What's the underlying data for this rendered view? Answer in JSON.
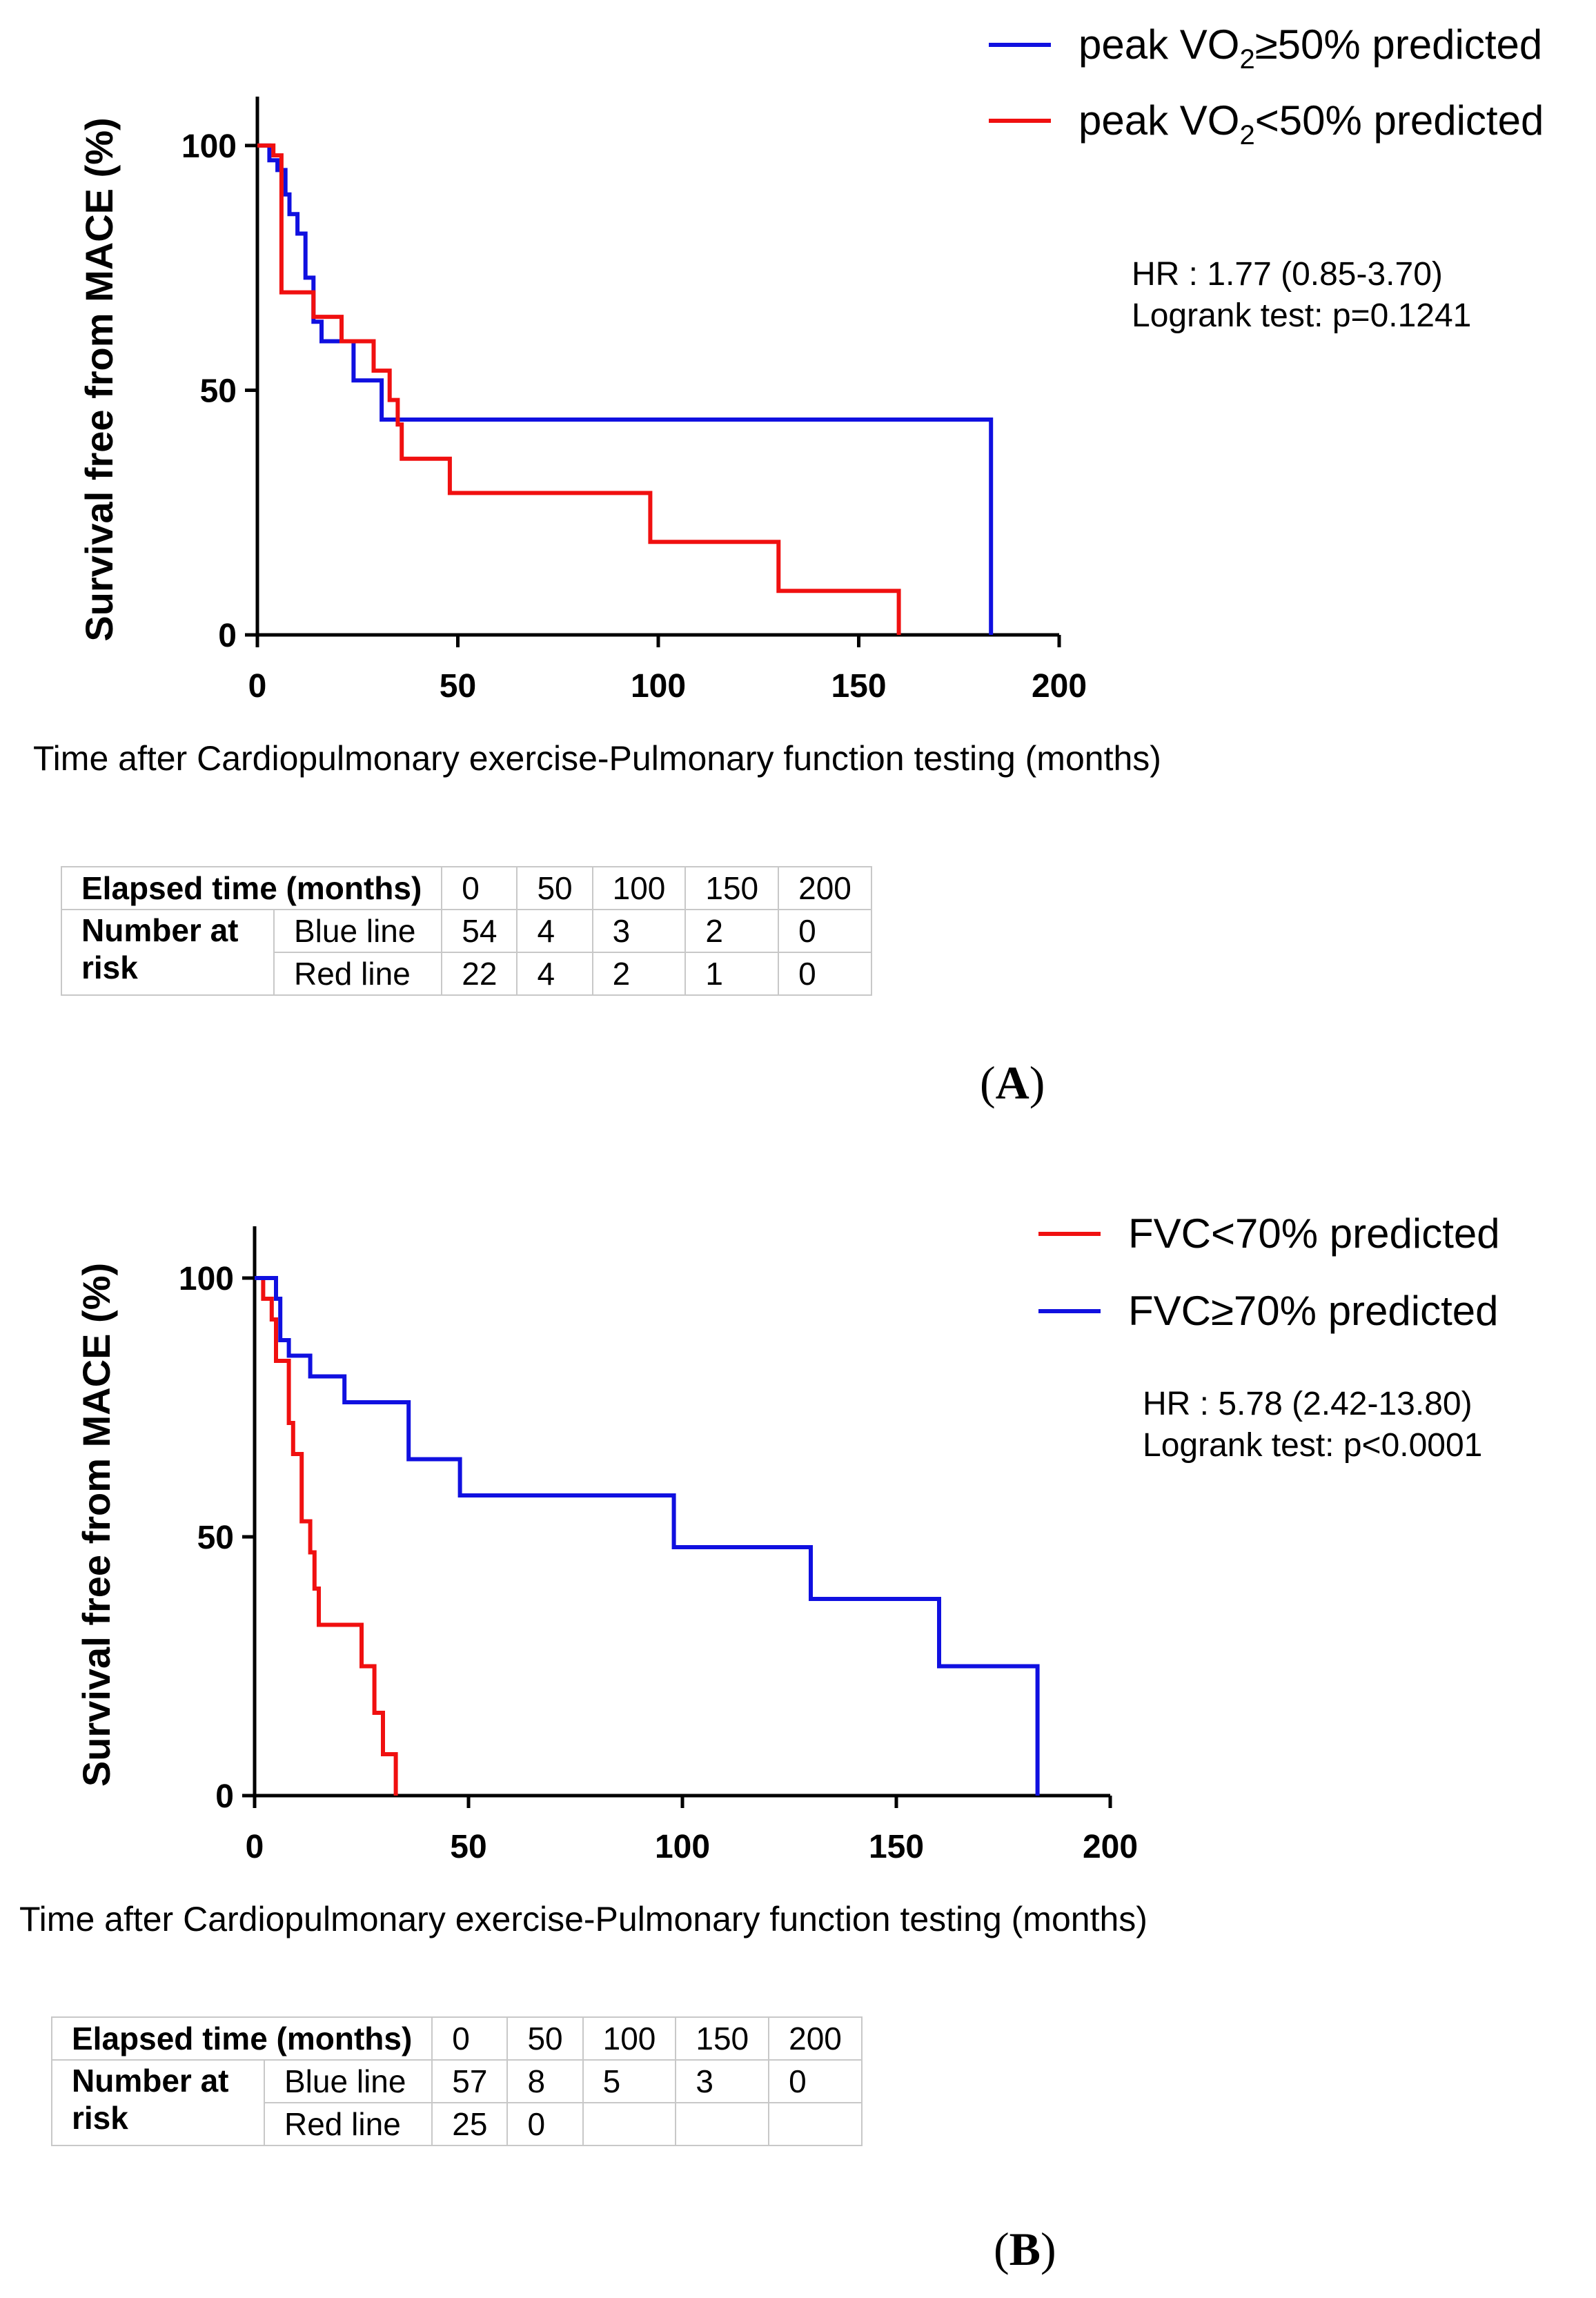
{
  "chart_data": [
    {
      "type": "line",
      "subtype": "kaplan-meier-step",
      "panel": "A",
      "ylabel": "Survival free from MACE (%)",
      "xlabel": "Time after Cardiopulmonary exercise-Pulmonary function testing (months)",
      "xlim": [
        0,
        200
      ],
      "ylim": [
        0,
        110
      ],
      "xticks": [
        0,
        50,
        100,
        150,
        200
      ],
      "yticks": [
        0,
        50,
        100
      ],
      "legend": [
        {
          "prefix": "peak VO",
          "sub": "2",
          "suffix": "≥50% predicted",
          "color": "#1010e0"
        },
        {
          "prefix": "peak VO",
          "sub": "2",
          "suffix": "<50% predicted",
          "color": "#f01010"
        }
      ],
      "stats": [
        "HR : 1.77 (0.85-3.70)",
        "Logrank test: p=0.1241"
      ],
      "series": [
        {
          "name": "peak VO2≥50% predicted",
          "color": "#1010e0",
          "x": [
            0,
            3,
            3,
            5,
            5,
            7,
            7,
            8,
            8,
            10,
            10,
            12,
            12,
            14,
            14,
            16,
            16,
            24,
            24,
            31,
            31,
            33,
            33,
            183,
            183
          ],
          "y": [
            100,
            100,
            97,
            97,
            95,
            95,
            90,
            90,
            86,
            86,
            82,
            82,
            73,
            73,
            64,
            64,
            60,
            60,
            52,
            52,
            44,
            44,
            44,
            44,
            0
          ]
        },
        {
          "name": "peak VO2<50% predicted",
          "color": "#f01010",
          "x": [
            0,
            4,
            4,
            6,
            6,
            14,
            14,
            21,
            21,
            29,
            29,
            33,
            33,
            35,
            35,
            36,
            36,
            48,
            48,
            98,
            98,
            130,
            130,
            160,
            160
          ],
          "y": [
            100,
            100,
            98,
            98,
            70,
            70,
            65,
            65,
            60,
            60,
            54,
            54,
            48,
            48,
            43,
            43,
            36,
            36,
            29,
            29,
            19,
            19,
            9,
            9,
            0
          ]
        }
      ],
      "risk_table": {
        "header_label": "Elapsed time (months)",
        "times": [
          "0",
          "50",
          "100",
          "150",
          "200"
        ],
        "row_group_label": "Number at risk",
        "rows": [
          {
            "label": "Blue line",
            "values": [
              "54",
              "4",
              "3",
              "2",
              "0"
            ]
          },
          {
            "label": "Red line",
            "values": [
              "22",
              "4",
              "2",
              "1",
              "0"
            ]
          }
        ]
      },
      "panel_label": "A"
    },
    {
      "type": "line",
      "subtype": "kaplan-meier-step",
      "panel": "B",
      "ylabel": "Survival free from MACE (%)",
      "xlabel": "Time after Cardiopulmonary exercise-Pulmonary function testing (months)",
      "xlim": [
        0,
        200
      ],
      "ylim": [
        0,
        110
      ],
      "xticks": [
        0,
        50,
        100,
        150,
        200
      ],
      "yticks": [
        0,
        50,
        100
      ],
      "legend": [
        {
          "prefix": "FVC<70% predicted",
          "sub": "",
          "suffix": "",
          "color": "#f01010"
        },
        {
          "prefix": "FVC≥70% predicted",
          "sub": "",
          "suffix": "",
          "color": "#1010e0"
        }
      ],
      "stats": [
        "HR : 5.78 (2.42-13.80)",
        "Logrank test: p<0.0001"
      ],
      "series": [
        {
          "name": "FVC<70% predicted",
          "color": "#f01010",
          "x": [
            0,
            2,
            2,
            4,
            4,
            5,
            5,
            8,
            8,
            9,
            9,
            10,
            10,
            11,
            11,
            13,
            13,
            14,
            14,
            15,
            15,
            16,
            16,
            25,
            25,
            28,
            28,
            30,
            30,
            33,
            33
          ],
          "y": [
            100,
            100,
            96,
            96,
            92,
            92,
            84,
            84,
            72,
            72,
            66,
            66,
            66,
            66,
            53,
            53,
            47,
            47,
            40,
            40,
            33,
            33,
            33,
            33,
            25,
            25,
            16,
            16,
            8,
            8,
            0
          ]
        },
        {
          "name": "FVC≥70% predicted",
          "color": "#1010e0",
          "x": [
            0,
            5,
            5,
            6,
            6,
            8,
            8,
            13,
            13,
            21,
            21,
            36,
            36,
            48,
            48,
            98,
            98,
            130,
            130,
            160,
            160,
            183,
            183
          ],
          "y": [
            100,
            100,
            96,
            96,
            88,
            88,
            85,
            85,
            81,
            81,
            76,
            76,
            65,
            65,
            58,
            58,
            48,
            48,
            38,
            38,
            25,
            25,
            0
          ]
        }
      ],
      "risk_table": {
        "header_label": "Elapsed time (months)",
        "times": [
          "0",
          "50",
          "100",
          "150",
          "200"
        ],
        "row_group_label": "Number at risk",
        "rows": [
          {
            "label": "Blue line",
            "values": [
              "57",
              "8",
              "5",
              "3",
              "0"
            ]
          },
          {
            "label": "Red line",
            "values": [
              "25",
              "0",
              "",
              "",
              ""
            ]
          }
        ]
      },
      "panel_label": "B"
    }
  ]
}
